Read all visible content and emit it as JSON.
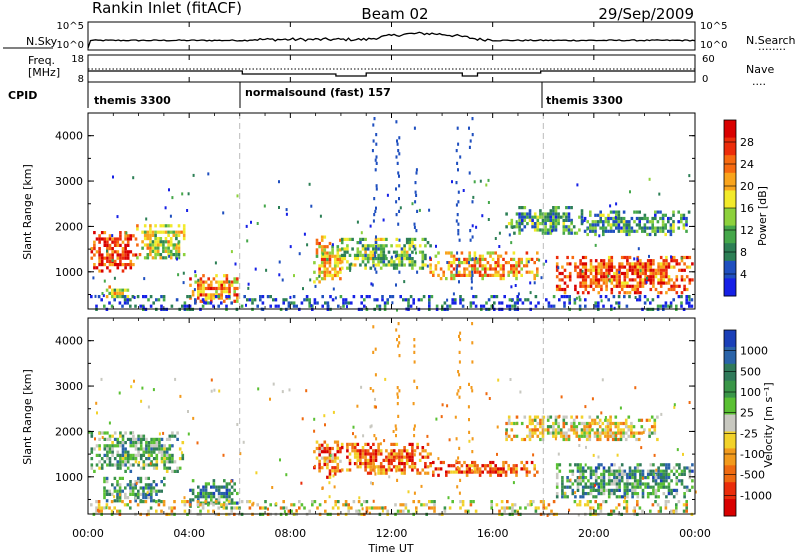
{
  "header": {
    "station": "Rankin Inlet (fitACF)",
    "beam": "Beam 02",
    "date": "29/Sep/2009"
  },
  "top_strip": {
    "left_label": "N.Sky",
    "left_ticks": [
      "10^5",
      "10^0"
    ],
    "right_ticks": [
      "10^5",
      "10^0"
    ],
    "right_label": "N.Search",
    "right_style": "........"
  },
  "freq_strip": {
    "left_label_1": "Freq.",
    "left_label_2": "[MHz]",
    "left_ticks": [
      "18",
      "8"
    ],
    "right_ticks": [
      "60",
      "0"
    ],
    "right_label": "Nave",
    "right_style": "...."
  },
  "cpid": {
    "label": "CPID",
    "segments": [
      {
        "name": "themis 3300",
        "start_hr": 0
      },
      {
        "name": "normalsound (fast) 157",
        "start_hr": 6
      },
      {
        "name": "themis 3300",
        "start_hr": 18
      }
    ]
  },
  "time_axis": {
    "label": "Time UT",
    "ticks": [
      "00:00",
      "04:00",
      "08:00",
      "12:00",
      "16:00",
      "20:00",
      "00:00"
    ]
  },
  "chart_data": [
    {
      "type": "heatmap",
      "panel": "power",
      "ylabel": "Slant Range [km]",
      "yticks": [
        "1000",
        "2000",
        "3000",
        "4000"
      ],
      "ylim": [
        180,
        4500
      ],
      "xlim_hours": [
        0,
        24
      ],
      "colorbar_label": "Power [dB]",
      "colorbar_ticks": [
        "4",
        "8",
        "12",
        "16",
        "20",
        "24",
        "28"
      ],
      "colorbar_colors": [
        "#1620e6",
        "#1f4fbf",
        "#2c7f55",
        "#45a74a",
        "#8dd13c",
        "#f2ea2a",
        "#f9a41c",
        "#f76a10",
        "#ec2c0a",
        "#d90000"
      ],
      "echo_regions": [
        {
          "t0": 0.1,
          "t1": 1.9,
          "r0": 1000,
          "r1": 1900,
          "level": 0.85
        },
        {
          "t0": 1.9,
          "t1": 3.8,
          "r0": 1300,
          "r1": 2050,
          "level": 0.5
        },
        {
          "t0": 0.6,
          "t1": 1.8,
          "r0": 450,
          "r1": 700,
          "level": 0.5
        },
        {
          "t0": 4.0,
          "t1": 5.9,
          "r0": 330,
          "r1": 950,
          "level": 0.7
        },
        {
          "t0": 8.9,
          "t1": 10.0,
          "r0": 800,
          "r1": 1800,
          "level": 0.6
        },
        {
          "t0": 10.0,
          "t1": 13.5,
          "r0": 1050,
          "r1": 1750,
          "level": 0.4
        },
        {
          "t0": 13.5,
          "t1": 17.8,
          "r0": 850,
          "r1": 1450,
          "level": 0.65
        },
        {
          "t0": 16.5,
          "t1": 19.5,
          "r0": 1850,
          "r1": 2450,
          "level": 0.3
        },
        {
          "t0": 19.5,
          "t1": 23.8,
          "r0": 1800,
          "r1": 2350,
          "level": 0.3
        },
        {
          "t0": 18.5,
          "t1": 23.9,
          "r0": 550,
          "r1": 1350,
          "level": 0.8
        }
      ]
    },
    {
      "type": "heatmap",
      "panel": "velocity",
      "ylabel": "Slant Range [km]",
      "yticks": [
        "1000",
        "2000",
        "3000",
        "4000"
      ],
      "ylim": [
        180,
        4500
      ],
      "xlim_hours": [
        0,
        24
      ],
      "colorbar_label": "Velocity [m s⁻¹]",
      "colorbar_ticks": [
        "1000",
        "500",
        "100",
        "25",
        "-25",
        "-100",
        "-500",
        "-1000"
      ],
      "colorbar_colors": [
        "#1a3fb8",
        "#2a63a8",
        "#2f7a5a",
        "#3a9648",
        "#5ac033",
        "#c8c8c0",
        "#f2d22a",
        "#f29a1c",
        "#ef6a10",
        "#ea2c0a",
        "#d90000"
      ],
      "echo_regions": [
        {
          "t0": 0.1,
          "t1": 3.8,
          "r0": 1100,
          "r1": 2000,
          "level": 0.35
        },
        {
          "t0": 0.6,
          "t1": 3.0,
          "r0": 450,
          "r1": 1000,
          "level": 0.3
        },
        {
          "t0": 4.0,
          "t1": 5.9,
          "r0": 330,
          "r1": 950,
          "level": 0.25
        },
        {
          "t0": 8.9,
          "t1": 10.0,
          "r0": 1000,
          "r1": 1800,
          "level": 0.75
        },
        {
          "t0": 10.0,
          "t1": 13.5,
          "r0": 1050,
          "r1": 1750,
          "level": 0.78
        },
        {
          "t0": 13.5,
          "t1": 17.8,
          "r0": 1050,
          "r1": 1350,
          "level": 0.8
        },
        {
          "t0": 16.5,
          "t1": 22.5,
          "r0": 1800,
          "r1": 2350,
          "level": 0.55
        },
        {
          "t0": 18.5,
          "t1": 23.9,
          "r0": 550,
          "r1": 1300,
          "level": 0.3
        }
      ]
    }
  ]
}
